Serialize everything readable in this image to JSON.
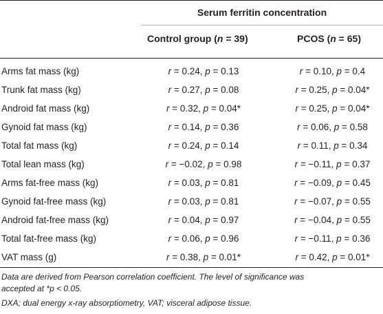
{
  "header": {
    "group_title": "Serum ferritin concentration",
    "control": {
      "prefix": "Control group (",
      "n_var": "n",
      "suffix": " = 39)"
    },
    "pcos": {
      "prefix": "PCOS (",
      "n_var": "n",
      "suffix": " = 65)"
    }
  },
  "rows": [
    {
      "label": "Arms fat mass (kg)",
      "a": " = 0.24, ",
      "a_p": " = 0.13",
      "b": " = 0.10, ",
      "b_p": " = 0.4"
    },
    {
      "label": "Trunk fat mass (kg)",
      "a": " = 0.27, ",
      "a_p": " = 0.08",
      "b": " = 0.25, ",
      "b_p": " = 0.04*"
    },
    {
      "label": "Android fat mass (kg)",
      "a": " = 0.32, ",
      "a_p": " = 0.04*",
      "b": " = 0.25, ",
      "b_p": " = 0.04*"
    },
    {
      "label": "Gynoid fat mass (kg)",
      "a": " = 0.14, ",
      "a_p": " = 0.36",
      "b": " = 0.06, ",
      "b_p": " = 0.58"
    },
    {
      "label": "Total fat mass (kg)",
      "a": " = 0.24, ",
      "a_p": " = 0.14",
      "b": " = 0.11, ",
      "b_p": " = 0.34"
    },
    {
      "label": "Total lean mass (kg)",
      "a": " = −0.02, ",
      "a_p": " = 0.98",
      "b": " = −0.11, ",
      "b_p": " = 0.37"
    },
    {
      "label": "Arms fat-free mass (kg)",
      "a": " = 0.03, ",
      "a_p": " = 0.81",
      "b": " = −0.09, ",
      "b_p": " = 0.45"
    },
    {
      "label": "Gynoid fat-free mass (kg)",
      "a": " = 0.03, ",
      "a_p": " = 0.81",
      "b": " = −0.07, ",
      "b_p": " = 0.55"
    },
    {
      "label": "Android fat-free mass (kg)",
      "a": " = 0.04, ",
      "a_p": " = 0.97",
      "b": " = −0.04, ",
      "b_p": " = 0.55"
    },
    {
      "label": "Total fat-free mass (kg)",
      "a": " = 0.06, ",
      "a_p": " = 0.96",
      "b": " = −0.11, ",
      "b_p": " = 0.36"
    },
    {
      "label": "VAT mass (g)",
      "a": " = 0.38, ",
      "a_p": " = 0.01*",
      "b": " = 0.42, ",
      "b_p": " = 0.01*"
    }
  ],
  "var_r": "r",
  "var_p": "p",
  "footnotes": {
    "line1": "Data are derived from Pearson correlation coefficient. The level of significance was",
    "line2_prefix": "accepted at *",
    "line2_var": "p",
    "line2_suffix": " < 0.05.",
    "line3": "DXA; dual energy x-ray absorptiometry, VAT; visceral adipose tissue."
  }
}
